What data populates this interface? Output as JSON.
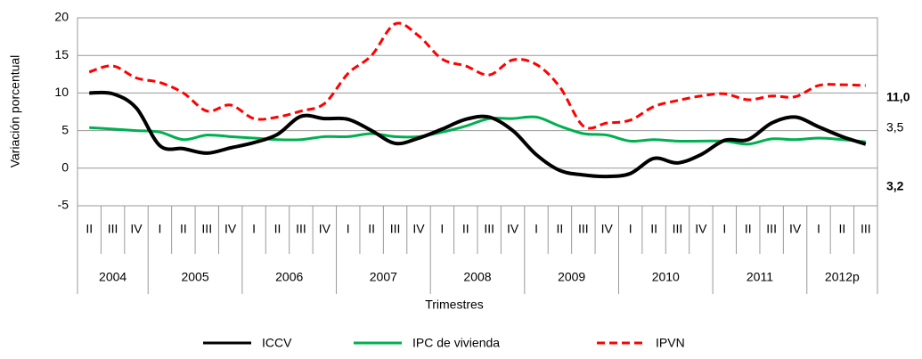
{
  "chart_data": {
    "type": "line",
    "y_label": "Variación porcentual",
    "x_label": "Trimestres",
    "groups": [
      {
        "name": "2004",
        "categories": [
          "II",
          "III",
          "IV"
        ]
      },
      {
        "name": "2005",
        "categories": [
          "I",
          "II",
          "III",
          "IV"
        ]
      },
      {
        "name": "2006",
        "categories": [
          "I",
          "II",
          "III",
          "IV"
        ]
      },
      {
        "name": "2007",
        "categories": [
          "I",
          "II",
          "III",
          "IV"
        ]
      },
      {
        "name": "2008",
        "categories": [
          "I",
          "II",
          "III",
          "IV"
        ]
      },
      {
        "name": "2009",
        "categories": [
          "I",
          "II",
          "III",
          "IV"
        ]
      },
      {
        "name": "2010",
        "categories": [
          "I",
          "II",
          "III",
          "IV"
        ]
      },
      {
        "name": "2011",
        "categories": [
          "I",
          "II",
          "III",
          "IV"
        ]
      },
      {
        "name": "2012p",
        "categories": [
          "I",
          "II",
          "III"
        ]
      }
    ],
    "series": [
      {
        "name": "ICCV",
        "color": "#000000",
        "dashed": false,
        "values": [
          10,
          9.9,
          8,
          3,
          2.6,
          2,
          2.7,
          3.4,
          4.5,
          6.9,
          6.6,
          6.5,
          5,
          3.3,
          4,
          5.2,
          6.5,
          6.8,
          5,
          1.8,
          -0.3,
          -0.9,
          -1.1,
          -0.7,
          1.3,
          0.7,
          1.8,
          3.7,
          3.8,
          6,
          6.8,
          5.5,
          4.2,
          3.2
        ],
        "value_labels": [
          null,
          null,
          null,
          null,
          null,
          null,
          null,
          null,
          null,
          null,
          null,
          null,
          null,
          null,
          null,
          null,
          null,
          null,
          null,
          null,
          null,
          null,
          null,
          null,
          null,
          null,
          null,
          null,
          null,
          null,
          null,
          null,
          null,
          "3,2"
        ]
      },
      {
        "name": "IPC de vivienda",
        "color": "#00b050",
        "dashed": false,
        "values": [
          5.4,
          5.2,
          5,
          4.8,
          3.8,
          4.4,
          4.2,
          4,
          3.8,
          3.8,
          4.2,
          4.2,
          4.6,
          4.2,
          4.2,
          4.8,
          5.6,
          6.6,
          6.6,
          6.8,
          5.6,
          4.6,
          4.4,
          3.6,
          3.8,
          3.6,
          3.6,
          3.6,
          3.2,
          3.9,
          3.8,
          4,
          3.8,
          3.5
        ],
        "value_labels": [
          null,
          null,
          null,
          null,
          null,
          null,
          null,
          null,
          null,
          null,
          null,
          null,
          null,
          null,
          null,
          null,
          null,
          null,
          null,
          null,
          null,
          null,
          null,
          null,
          null,
          null,
          null,
          null,
          null,
          null,
          null,
          null,
          null,
          "3,5"
        ]
      },
      {
        "name": "IPVN",
        "color": "#ff0000",
        "dashed": true,
        "values": [
          12.8,
          13.6,
          12,
          11.4,
          10,
          7.6,
          8.4,
          6.6,
          6.8,
          7.6,
          8.6,
          12.6,
          15,
          19.2,
          17.6,
          14.5,
          13.6,
          12.4,
          14.4,
          13.8,
          10.8,
          5.6,
          6,
          6.4,
          8.2,
          9,
          9.6,
          9.9,
          9.1,
          9.6,
          9.5,
          11,
          11.1,
          11
        ],
        "value_labels": [
          null,
          null,
          null,
          null,
          null,
          null,
          null,
          null,
          null,
          null,
          null,
          null,
          null,
          null,
          null,
          null,
          null,
          null,
          null,
          null,
          null,
          null,
          null,
          null,
          null,
          null,
          null,
          null,
          null,
          null,
          null,
          null,
          null,
          "11,0"
        ]
      }
    ],
    "ylim": [
      -5,
      20
    ],
    "yticks": [
      -5,
      0,
      5,
      10,
      15,
      20
    ],
    "grid": true
  }
}
